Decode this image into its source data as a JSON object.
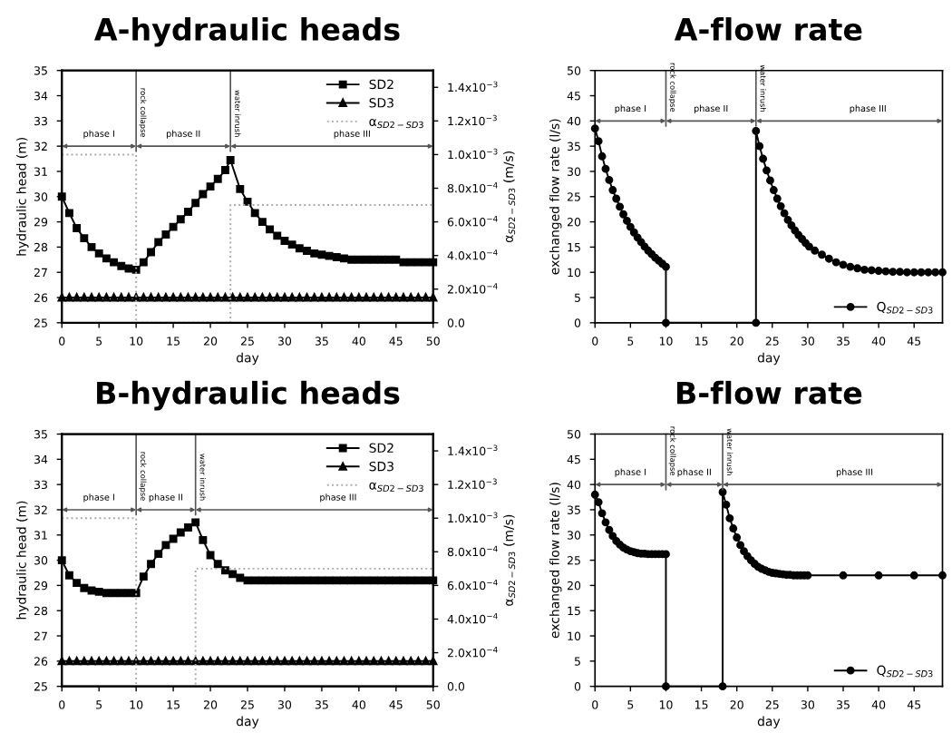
{
  "chart_data": [
    {
      "type": "line",
      "title": "A-hydraulic heads",
      "xlabel": "day",
      "ylabel": "hydraulic head (m)",
      "y2label": "α$_{SD2−SD3}$ (m/s)",
      "xlim": [
        0,
        50
      ],
      "xticks": [
        0,
        5,
        10,
        15,
        20,
        25,
        30,
        35,
        40,
        45,
        50
      ],
      "ylim": [
        25,
        35
      ],
      "yticks": [
        25,
        26,
        27,
        28,
        29,
        30,
        31,
        32,
        33,
        34,
        35
      ],
      "y2lim": [
        0,
        0.0015
      ],
      "y2ticks": [
        {
          "value": 0,
          "label": "0.0"
        },
        {
          "value": 0.0002,
          "label": "2.0x10$^{−4}$"
        },
        {
          "value": 0.0004,
          "label": "4.0x10$^{−4}$"
        },
        {
          "value": 0.0006,
          "label": "6.0x10$^{−4}$"
        },
        {
          "value": 0.0008,
          "label": "8.0x10$^{−4}$"
        },
        {
          "value": 0.001,
          "label": "1.0x10$^{−3}$"
        },
        {
          "value": 0.0012,
          "label": "1.2x10$^{−3}$"
        },
        {
          "value": 0.0014,
          "label": "1.4x10$^{−3}$"
        }
      ],
      "legend": "top right",
      "grid": false,
      "series": [
        {
          "name": "SD2",
          "color": "#000000",
          "marker": "square",
          "x": [
            0,
            1,
            2,
            3,
            4,
            5,
            6,
            7,
            8,
            9,
            10,
            11,
            12,
            13,
            14,
            15,
            16,
            17,
            18,
            19,
            20,
            21,
            22,
            22.7,
            24,
            25,
            26,
            27,
            28,
            29,
            30,
            31,
            32,
            33,
            34,
            35,
            36,
            37,
            38,
            39,
            40,
            41,
            42,
            43,
            44,
            45,
            46,
            47,
            48,
            49,
            50
          ],
          "values": [
            30.0,
            29.35,
            28.75,
            28.35,
            28.0,
            27.75,
            27.55,
            27.4,
            27.25,
            27.15,
            27.1,
            27.4,
            27.8,
            28.2,
            28.5,
            28.8,
            29.1,
            29.4,
            29.75,
            30.1,
            30.4,
            30.7,
            31.05,
            31.45,
            30.3,
            29.8,
            29.35,
            29.0,
            28.7,
            28.45,
            28.25,
            28.1,
            27.95,
            27.85,
            27.75,
            27.7,
            27.65,
            27.6,
            27.55,
            27.5,
            27.5,
            27.5,
            27.5,
            27.5,
            27.5,
            27.5,
            27.4,
            27.4,
            27.4,
            27.4,
            27.4
          ]
        },
        {
          "name": "SD3",
          "color": "#000000",
          "marker": "triangle",
          "x": [
            0,
            1,
            2,
            3,
            4,
            5,
            6,
            7,
            8,
            9,
            10,
            11,
            12,
            13,
            14,
            15,
            16,
            17,
            18,
            19,
            20,
            21,
            22,
            23,
            24,
            25,
            26,
            27,
            28,
            29,
            30,
            31,
            32,
            33,
            34,
            35,
            36,
            37,
            38,
            39,
            40,
            41,
            42,
            43,
            44,
            45,
            46,
            47,
            48,
            49,
            50
          ],
          "values": [
            26,
            26,
            26,
            26,
            26,
            26,
            26,
            26,
            26,
            26,
            26,
            26,
            26,
            26,
            26,
            26,
            26,
            26,
            26,
            26,
            26,
            26,
            26,
            26,
            26,
            26,
            26,
            26,
            26,
            26,
            26,
            26,
            26,
            26,
            26,
            26,
            26,
            26,
            26,
            26,
            26,
            26,
            26,
            26,
            26,
            26,
            26,
            26,
            26,
            26,
            26
          ]
        },
        {
          "name": "α$_{SD2−SD3}$",
          "type": "step",
          "axis": "y2",
          "color": "#aaaaaa",
          "line_style": "dotted",
          "marker": "none",
          "x": [
            0,
            10,
            22.7,
            50
          ],
          "values": [
            0.001,
            0,
            0.0007,
            0.0007
          ]
        }
      ],
      "ref_lines": [
        {
          "axis": "x",
          "value": 10,
          "label": "rock collapse"
        },
        {
          "axis": "x",
          "value": 22.7,
          "label": "water inrush"
        }
      ],
      "annotations": [
        "phase I",
        "phase II",
        "phase III"
      ]
    },
    {
      "type": "line",
      "title": "A-flow rate",
      "xlabel": "day",
      "ylabel": "exchanged flow rate (l/s)",
      "xlim": [
        0,
        49
      ],
      "xticks": [
        0,
        5,
        10,
        15,
        20,
        25,
        30,
        35,
        40,
        45
      ],
      "ylim": [
        0,
        50
      ],
      "yticks": [
        0,
        5,
        10,
        15,
        20,
        25,
        30,
        35,
        40,
        45,
        50
      ],
      "legend": "bottom right",
      "grid": false,
      "series": [
        {
          "name": "Q$_{SD2−SD3}$",
          "color": "#000000",
          "marker": "circle",
          "x": [
            0,
            0.5,
            1,
            1.5,
            2,
            2.5,
            3,
            3.5,
            4,
            4.5,
            5,
            5.5,
            6,
            6.5,
            7,
            7.5,
            8,
            8.5,
            9,
            9.5,
            10,
            10,
            22.7,
            22.7,
            23.2,
            23.7,
            24.2,
            24.7,
            25.2,
            25.7,
            26.2,
            26.7,
            27.2,
            27.7,
            28.2,
            28.7,
            29.2,
            29.7,
            30.2,
            31,
            32,
            33,
            34,
            35,
            36,
            37,
            38,
            39,
            40,
            41,
            42,
            43,
            44,
            45,
            46,
            47,
            48,
            49
          ],
          "values": [
            38.5,
            36,
            33,
            30.5,
            28.3,
            26.3,
            24.6,
            23,
            21.5,
            20.2,
            19,
            17.9,
            16.9,
            16,
            15.1,
            14.3,
            13.6,
            12.9,
            12.3,
            11.7,
            11.1,
            0,
            0,
            38,
            35,
            32.5,
            30.2,
            28.2,
            26.3,
            24.6,
            23.1,
            21.7,
            20.4,
            19.3,
            18.3,
            17.4,
            16.6,
            15.8,
            15.1,
            14.3,
            13.5,
            12.7,
            12.0,
            11.5,
            11.1,
            10.8,
            10.5,
            10.4,
            10.3,
            10.2,
            10.1,
            10.1,
            10.0,
            10.0,
            10.0,
            10.0,
            10.0,
            10.0
          ]
        }
      ],
      "ref_lines": [
        {
          "axis": "x",
          "value": 10,
          "label": "rock collapse"
        },
        {
          "axis": "x",
          "value": 22.7,
          "label": "water inrush"
        }
      ],
      "annotations": [
        "phase I",
        "phase II",
        "phase III"
      ]
    },
    {
      "type": "line",
      "title": "B-hydraulic heads",
      "xlabel": "day",
      "ylabel": "hydraulic head (m)",
      "y2label": "α$_{SD2−SD3}$ (m/s)",
      "xlim": [
        0,
        50
      ],
      "xticks": [
        0,
        5,
        10,
        15,
        20,
        25,
        30,
        35,
        40,
        45,
        50
      ],
      "ylim": [
        25,
        35
      ],
      "yticks": [
        25,
        26,
        27,
        28,
        29,
        30,
        31,
        32,
        33,
        34,
        35
      ],
      "y2lim": [
        0,
        0.0015
      ],
      "y2ticks": [
        {
          "value": 0,
          "label": "0.0"
        },
        {
          "value": 0.0002,
          "label": "2.0x10$^{−4}$"
        },
        {
          "value": 0.0004,
          "label": "4.0x10$^{−4}$"
        },
        {
          "value": 0.0006,
          "label": "6.0x10$^{−4}$"
        },
        {
          "value": 0.0008,
          "label": "8.0x10$^{−4}$"
        },
        {
          "value": 0.001,
          "label": "1.0x10$^{−3}$"
        },
        {
          "value": 0.0012,
          "label": "1.2x10$^{−3}$"
        },
        {
          "value": 0.0014,
          "label": "1.4x10$^{−3}$"
        }
      ],
      "legend": "top right",
      "grid": false,
      "series": [
        {
          "name": "SD2",
          "color": "#000000",
          "marker": "square",
          "x": [
            0,
            1,
            2,
            3,
            4,
            5,
            6,
            7,
            8,
            9,
            10,
            11,
            12,
            13,
            14,
            15,
            16,
            17,
            18,
            19,
            20,
            21,
            22,
            23,
            24,
            25,
            26,
            27,
            28,
            29,
            30,
            31,
            32,
            33,
            34,
            35,
            36,
            37,
            38,
            39,
            40,
            41,
            42,
            43,
            44,
            45,
            46,
            47,
            48,
            49,
            50
          ],
          "values": [
            30.0,
            29.4,
            29.1,
            28.9,
            28.8,
            28.75,
            28.7,
            28.7,
            28.7,
            28.7,
            28.7,
            29.35,
            29.85,
            30.25,
            30.6,
            30.85,
            31.1,
            31.3,
            31.5,
            30.8,
            30.2,
            29.85,
            29.6,
            29.45,
            29.3,
            29.2,
            29.2,
            29.2,
            29.2,
            29.2,
            29.2,
            29.2,
            29.2,
            29.2,
            29.2,
            29.2,
            29.2,
            29.2,
            29.2,
            29.2,
            29.2,
            29.2,
            29.2,
            29.2,
            29.2,
            29.2,
            29.2,
            29.2,
            29.2,
            29.2,
            29.2
          ]
        },
        {
          "name": "SD3",
          "color": "#000000",
          "marker": "triangle",
          "x": [
            0,
            1,
            2,
            3,
            4,
            5,
            6,
            7,
            8,
            9,
            10,
            11,
            12,
            13,
            14,
            15,
            16,
            17,
            18,
            19,
            20,
            21,
            22,
            23,
            24,
            25,
            26,
            27,
            28,
            29,
            30,
            31,
            32,
            33,
            34,
            35,
            36,
            37,
            38,
            39,
            40,
            41,
            42,
            43,
            44,
            45,
            46,
            47,
            48,
            49,
            50
          ],
          "values": [
            26,
            26,
            26,
            26,
            26,
            26,
            26,
            26,
            26,
            26,
            26,
            26,
            26,
            26,
            26,
            26,
            26,
            26,
            26,
            26,
            26,
            26,
            26,
            26,
            26,
            26,
            26,
            26,
            26,
            26,
            26,
            26,
            26,
            26,
            26,
            26,
            26,
            26,
            26,
            26,
            26,
            26,
            26,
            26,
            26,
            26,
            26,
            26,
            26,
            26,
            26
          ]
        },
        {
          "name": "α$_{SD2−SD3}$",
          "type": "step",
          "axis": "y2",
          "color": "#aaaaaa",
          "line_style": "dotted",
          "marker": "none",
          "x": [
            0,
            10,
            18,
            50
          ],
          "values": [
            0.001,
            0,
            0.0007,
            0.0007
          ]
        }
      ],
      "ref_lines": [
        {
          "axis": "x",
          "value": 10,
          "label": "rock collapse"
        },
        {
          "axis": "x",
          "value": 18,
          "label": "water inrush"
        }
      ],
      "annotations": [
        "phase I",
        "phase II",
        "phase III"
      ]
    },
    {
      "type": "line",
      "title": "B-flow rate",
      "xlabel": "day",
      "ylabel": "exchanged flow rate (l/s)",
      "xlim": [
        0,
        49
      ],
      "xticks": [
        0,
        5,
        10,
        15,
        20,
        25,
        30,
        35,
        40,
        45
      ],
      "ylim": [
        0,
        50
      ],
      "yticks": [
        0,
        5,
        10,
        15,
        20,
        25,
        30,
        35,
        40,
        45,
        50
      ],
      "legend": "bottom right",
      "grid": false,
      "series": [
        {
          "name": "Q$_{SD2−SD3}$",
          "color": "#000000",
          "marker": "circle",
          "x": [
            0,
            0.5,
            1,
            1.5,
            2,
            2.5,
            3,
            3.5,
            4,
            4.5,
            5,
            5.5,
            6,
            6.5,
            7,
            7.5,
            8,
            8.5,
            9,
            9.5,
            10,
            10,
            18,
            18,
            18.5,
            19,
            19.5,
            20,
            20.5,
            21,
            21.5,
            22,
            22.5,
            23,
            23.5,
            24,
            24.5,
            25,
            25.5,
            26,
            26.5,
            27,
            27.5,
            28,
            28.5,
            29,
            29.5,
            30,
            35,
            40,
            45,
            49
          ],
          "values": [
            38,
            36.5,
            34.3,
            32.5,
            31,
            29.8,
            28.8,
            28.1,
            27.5,
            27.1,
            26.8,
            26.6,
            26.4,
            26.3,
            26.3,
            26.2,
            26.2,
            26.2,
            26.2,
            26.2,
            26.2,
            0,
            0,
            38.5,
            36,
            33.3,
            31.3,
            29.5,
            28,
            26.8,
            25.8,
            25,
            24.3,
            23.7,
            23.3,
            23,
            22.7,
            22.5,
            22.4,
            22.3,
            22.2,
            22.1,
            22.1,
            22.0,
            22.0,
            22.0,
            22.0,
            22.0,
            22.0,
            22.0,
            22.0,
            22.0
          ]
        }
      ],
      "ref_lines": [
        {
          "axis": "x",
          "value": 10,
          "label": "rock collapse"
        },
        {
          "axis": "x",
          "value": 18,
          "label": "water inrush"
        }
      ],
      "annotations": [
        "phase I",
        "phase II",
        "phase III"
      ]
    }
  ]
}
